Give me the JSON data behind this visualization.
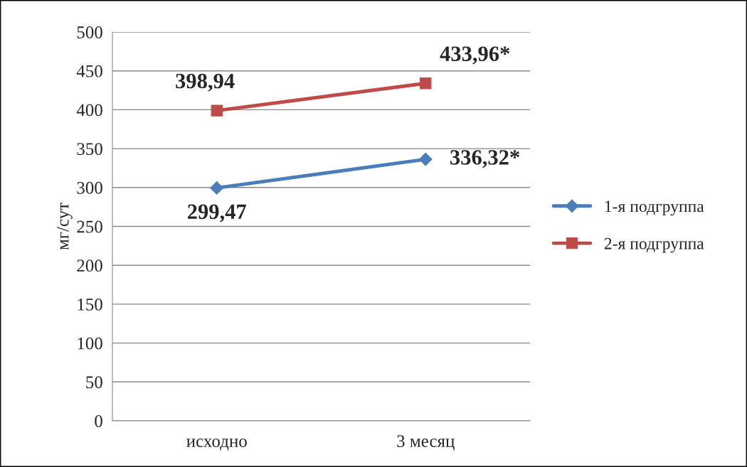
{
  "chart_data": {
    "type": "line",
    "ylabel": "мг/сут",
    "categories": [
      "исходно",
      "3 месяц"
    ],
    "series": [
      {
        "name": "1-я подгруппа",
        "color": "#4a7ebb",
        "marker": "diamond",
        "values": [
          299.47,
          336.32
        ],
        "value_labels": [
          "299,47",
          "336,32*"
        ]
      },
      {
        "name": "2-я подгруппа",
        "color": "#be4b48",
        "marker": "square",
        "values": [
          398.94,
          433.96
        ],
        "value_labels": [
          "398,94",
          "433,96*"
        ]
      }
    ],
    "ylim": [
      0,
      500
    ],
    "yticks": [
      0,
      50,
      100,
      150,
      200,
      250,
      300,
      350,
      400,
      450,
      500
    ],
    "grid": "y",
    "legend": "right"
  }
}
